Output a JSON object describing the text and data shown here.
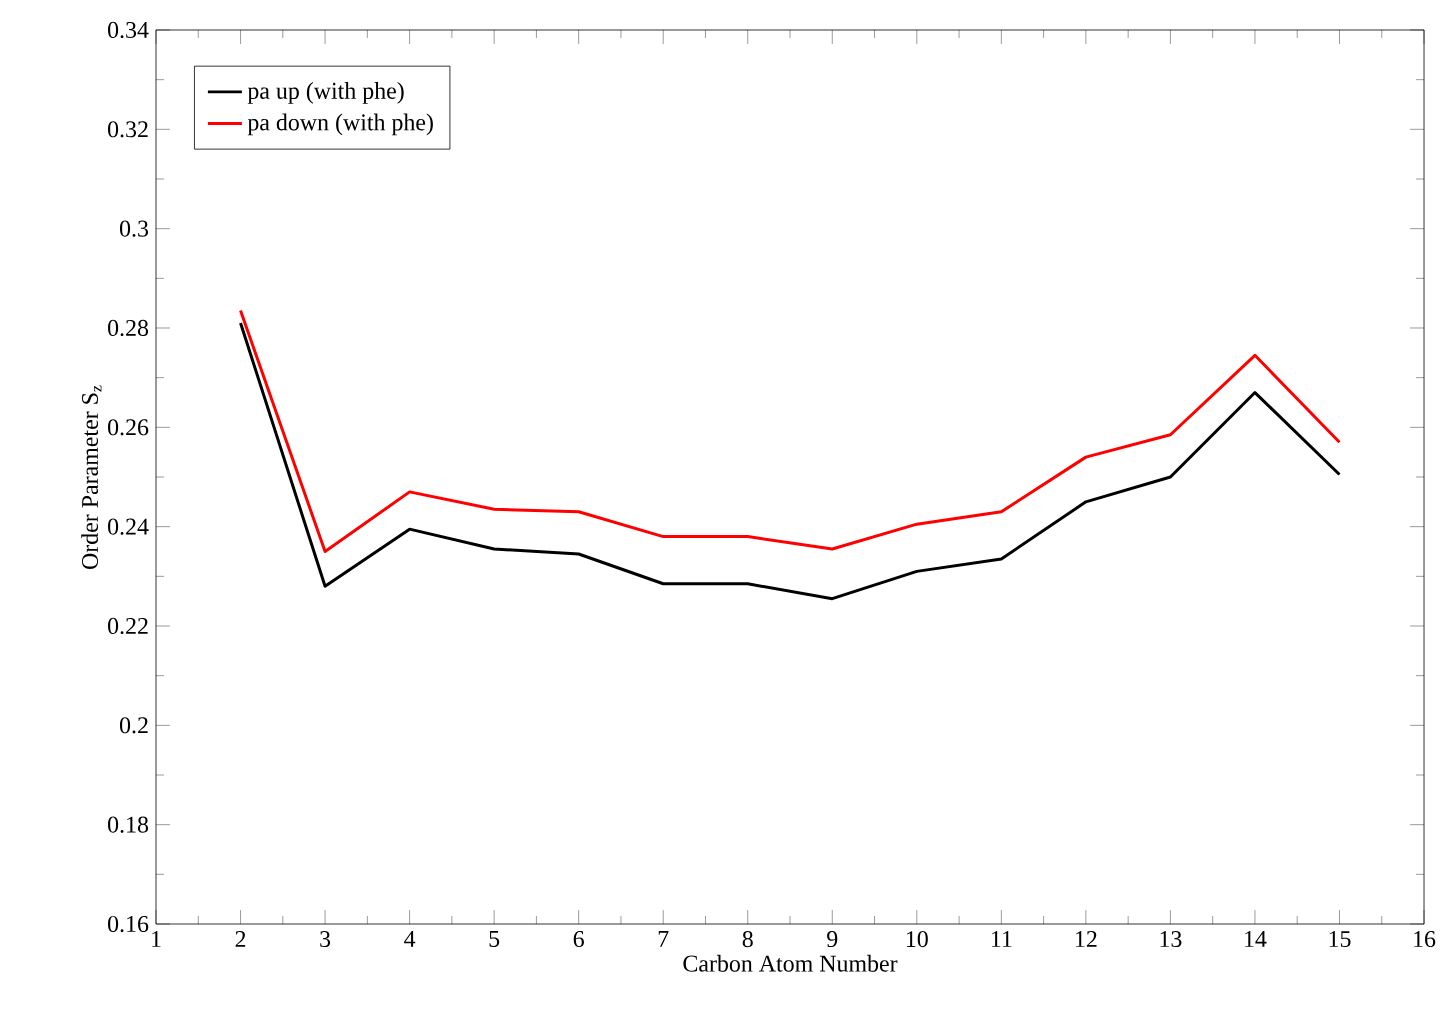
{
  "chart_data": {
    "type": "line",
    "xlabel": "Carbon Atom Number",
    "ylabel": "Order Parameter S$_{z}$",
    "xlim": [
      1,
      16
    ],
    "xticks": [
      1,
      2,
      3,
      4,
      5,
      6,
      7,
      8,
      9,
      10,
      11,
      12,
      13,
      14,
      15,
      16
    ],
    "ylim": [
      0.16,
      0.34
    ],
    "yticks": [
      0.16,
      0.18,
      0.2,
      0.22,
      0.24,
      0.26,
      0.28,
      0.3,
      0.32,
      0.34
    ],
    "x": [
      2,
      3,
      4,
      5,
      6,
      7,
      8,
      9,
      10,
      11,
      12,
      13,
      14,
      15
    ],
    "series": [
      {
        "name": "pa up (with phe)",
        "color": "#000000",
        "values": [
          0.281,
          0.228,
          0.2395,
          0.2355,
          0.2345,
          0.2285,
          0.2285,
          0.2255,
          0.231,
          0.2335,
          0.245,
          0.25,
          0.267,
          0.2505
        ]
      },
      {
        "name": "pa down (with phe)",
        "color": "#ff0000",
        "values": [
          0.2835,
          0.235,
          0.247,
          0.2435,
          0.243,
          0.238,
          0.238,
          0.2355,
          0.2405,
          0.243,
          0.254,
          0.2585,
          0.2745,
          0.257
        ]
      }
    ],
    "legend": "top left",
    "grid": false,
    "marker": "none",
    "line_style": "solid"
  }
}
